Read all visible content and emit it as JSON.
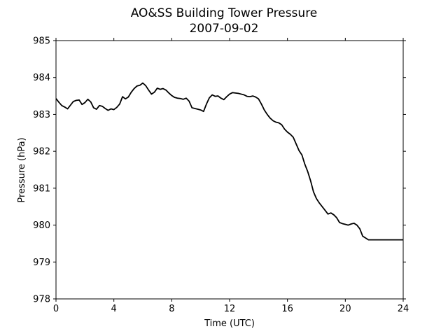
{
  "chart_data": {
    "type": "line",
    "title": "AO&SS Building Tower Pressure",
    "subtitle": "2007-09-02",
    "xlabel": "Time (UTC)",
    "ylabel": "Pressure (hPa)",
    "xlim": [
      0,
      24
    ],
    "ylim": [
      978,
      985
    ],
    "xticks": [
      "0",
      "4",
      "8",
      "12",
      "16",
      "20",
      "24"
    ],
    "yticks": [
      "978",
      "979",
      "980",
      "981",
      "982",
      "983",
      "984",
      "985"
    ],
    "grid": false,
    "line_color": "#000000",
    "series": [
      {
        "x": [
          0,
          0.2,
          0.4,
          0.6,
          0.8,
          1.0,
          1.2,
          1.4,
          1.6,
          1.8,
          2.0,
          2.2,
          2.4,
          2.6,
          2.8,
          3.0,
          3.2,
          3.4,
          3.6,
          3.8,
          4.0,
          4.2,
          4.4,
          4.6,
          4.8,
          5.0,
          5.2,
          5.4,
          5.6,
          5.8,
          6.0,
          6.2,
          6.4,
          6.6,
          6.8,
          7.0,
          7.2,
          7.4,
          7.6,
          7.8,
          8.0,
          8.2,
          8.4,
          8.6,
          8.8,
          9.0,
          9.2,
          9.4,
          9.6,
          9.8,
          10.0,
          10.2,
          10.4,
          10.6,
          10.8,
          11.0,
          11.2,
          11.4,
          11.6,
          11.8,
          12.0,
          12.2,
          12.4,
          12.6,
          12.8,
          13.0,
          13.2,
          13.4,
          13.6,
          13.8,
          14.0,
          14.2,
          14.4,
          14.6,
          14.8,
          15.0,
          15.2,
          15.4,
          15.6,
          15.8,
          16.0,
          16.2,
          16.4,
          16.6,
          16.8,
          17.0,
          17.2,
          17.4,
          17.6,
          17.8,
          18.0,
          18.2,
          18.4,
          18.6,
          18.8,
          19.0,
          19.2,
          19.4,
          19.6,
          19.8,
          20.0,
          20.2,
          20.4,
          20.6,
          20.8,
          21.0,
          21.2,
          21.4,
          21.6,
          21.8,
          22.0,
          22.2,
          22.4,
          22.6,
          22.8,
          23.0,
          23.2,
          23.4,
          23.6,
          23.8,
          24.0
        ],
        "y": [
          983.43,
          983.33,
          983.24,
          983.2,
          983.15,
          983.25,
          983.35,
          983.38,
          983.39,
          983.27,
          983.32,
          983.41,
          983.34,
          983.18,
          983.14,
          983.24,
          983.22,
          983.16,
          983.11,
          983.15,
          983.13,
          983.19,
          983.28,
          983.48,
          983.42,
          983.47,
          983.6,
          983.7,
          983.77,
          983.79,
          983.85,
          983.78,
          983.66,
          983.55,
          983.6,
          983.71,
          983.68,
          983.7,
          983.66,
          983.58,
          983.51,
          983.46,
          983.44,
          983.43,
          983.41,
          983.44,
          983.36,
          983.18,
          983.16,
          983.14,
          983.12,
          983.08,
          983.28,
          983.45,
          983.53,
          983.49,
          983.5,
          983.44,
          983.4,
          983.48,
          983.55,
          983.59,
          983.58,
          983.57,
          983.55,
          983.53,
          983.49,
          983.48,
          983.5,
          983.47,
          983.42,
          983.28,
          983.12,
          983.0,
          982.9,
          982.83,
          982.79,
          982.77,
          982.72,
          982.6,
          982.52,
          982.46,
          982.38,
          982.2,
          982.02,
          981.9,
          981.65,
          981.45,
          981.2,
          980.9,
          980.72,
          980.6,
          980.5,
          980.4,
          980.3,
          980.33,
          980.28,
          980.2,
          980.07,
          980.04,
          980.02,
          980.0,
          980.03,
          980.05,
          980.0,
          979.9,
          979.7,
          979.65,
          979.6,
          979.6,
          979.6,
          979.6,
          979.6,
          979.6,
          979.6,
          979.6,
          979.6,
          979.6,
          979.6,
          979.6,
          979.6
        ]
      }
    ]
  }
}
